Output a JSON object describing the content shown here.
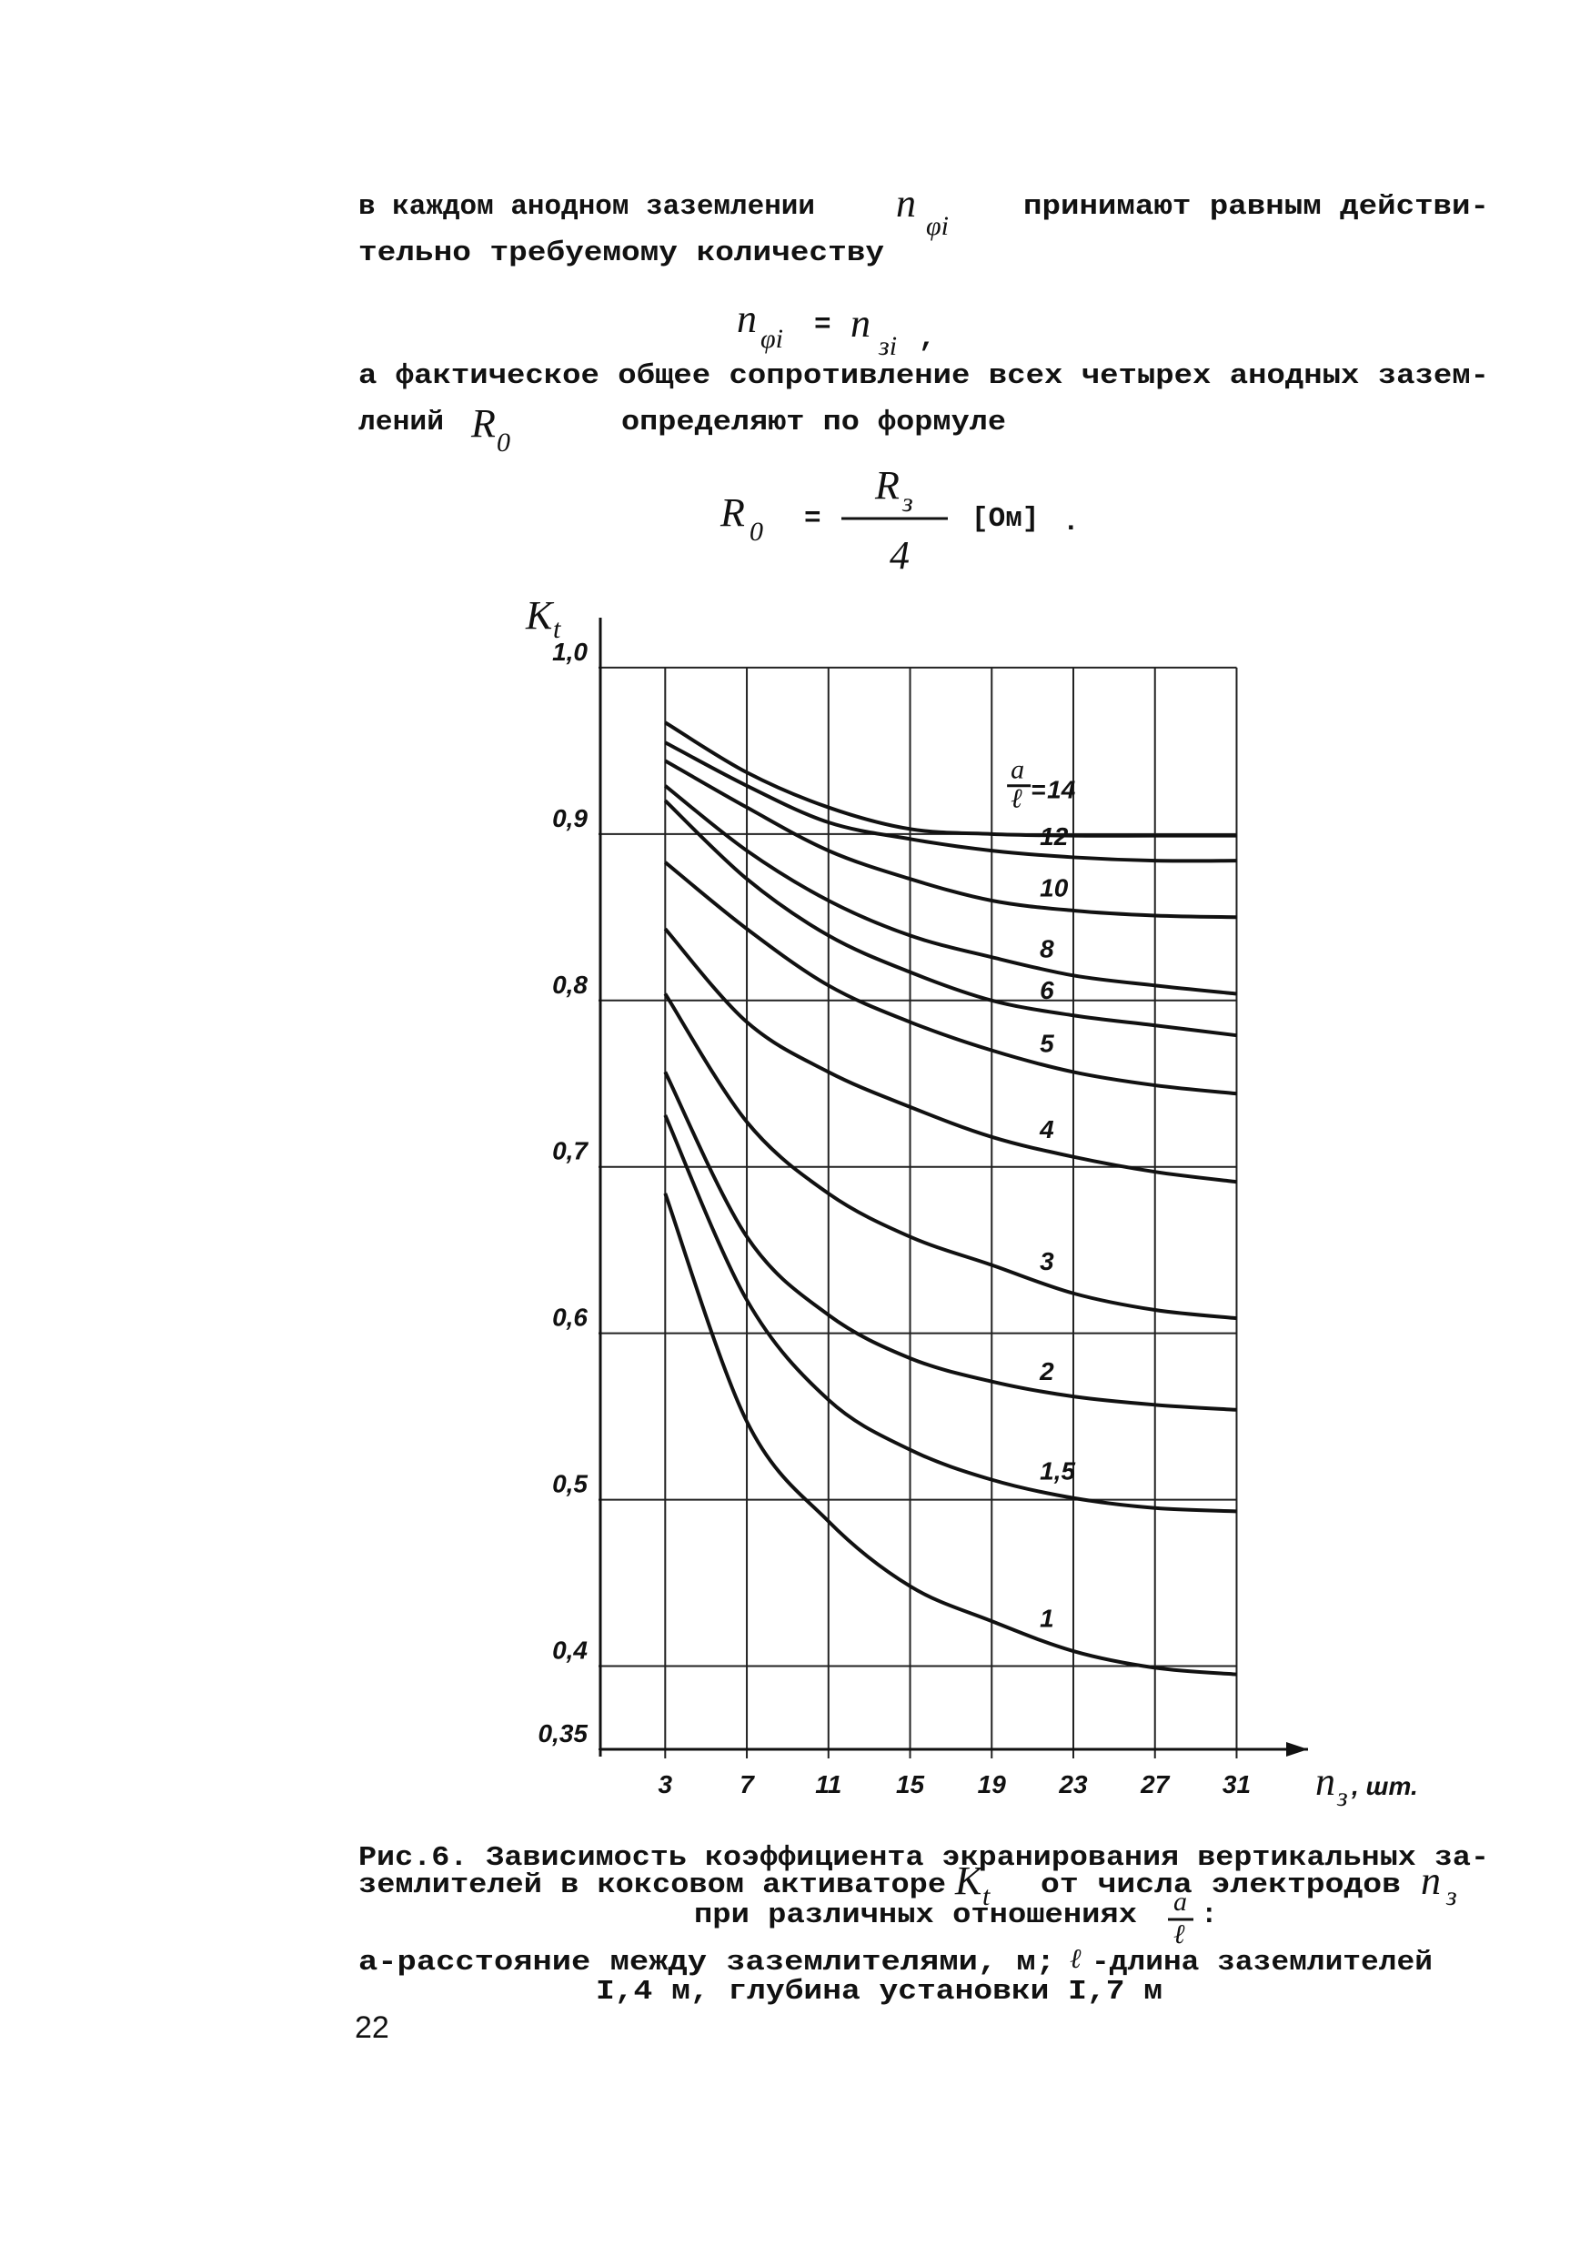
{
  "paragraph_1": {
    "text_1": "в каждом анодном заземлении",
    "symbol": "n",
    "symbol_sub": "φi",
    "text_2": "принимают равным действи-",
    "text_3": "тельно требуемому количеству"
  },
  "formula_1": {
    "left": "n",
    "left_sub": "φi",
    "equals": "=",
    "right": "n",
    "right_sub": "зi",
    "end": ","
  },
  "paragraph_2": {
    "text_1": "а фактическое общее сопротивление всех четырех анодных зазем-",
    "text_2": "лений",
    "symbol": "R",
    "symbol_sub": "0",
    "text_3": "определяют по формуле"
  },
  "formula_2": {
    "left": "R",
    "left_sub": "0",
    "equals": "=",
    "numerator": "R",
    "numerator_sub": "з",
    "denominator": "4",
    "unit": "[Ом]",
    "end": "."
  },
  "chart_data": {
    "type": "line",
    "y_label": "K",
    "y_label_sub": "t",
    "x_label": "n",
    "x_label_sub": "з",
    "x_label_suffix": ", шт.",
    "ratio_label": {
      "numerator": "a",
      "denominator": "ℓ",
      "sign": "="
    },
    "x": [
      3,
      7,
      11,
      15,
      19,
      23,
      27,
      31
    ],
    "xlim": [
      0,
      34.5
    ],
    "xticks": [
      3,
      7,
      11,
      15,
      19,
      23,
      27,
      31
    ],
    "ylim": [
      0.35,
      1.03
    ],
    "yticks": [
      {
        "value": 0.35,
        "label": "0,35"
      },
      {
        "value": 0.4,
        "label": "0,4"
      },
      {
        "value": 0.5,
        "label": "0,5"
      },
      {
        "value": 0.6,
        "label": "0,6"
      },
      {
        "value": 0.7,
        "label": "0,7"
      },
      {
        "value": 0.8,
        "label": "0,8"
      },
      {
        "value": 0.9,
        "label": "0,9"
      },
      {
        "value": 1.0,
        "label": "1,0"
      }
    ],
    "grid": true,
    "series": [
      {
        "name": "14",
        "color": "#111111",
        "values": [
          0.967,
          0.937,
          0.916,
          0.903,
          0.9,
          0.899,
          0.899,
          0.899
        ]
      },
      {
        "name": "12",
        "color": "#111111",
        "values": [
          0.955,
          0.929,
          0.907,
          0.897,
          0.89,
          0.886,
          0.884,
          0.884
        ]
      },
      {
        "name": "10",
        "color": "#111111",
        "values": [
          0.944,
          0.916,
          0.89,
          0.873,
          0.86,
          0.854,
          0.851,
          0.85
        ]
      },
      {
        "name": "8",
        "color": "#111111",
        "values": [
          0.929,
          0.89,
          0.86,
          0.839,
          0.826,
          0.815,
          0.809,
          0.804
        ]
      },
      {
        "name": "6",
        "color": "#111111",
        "values": [
          0.92,
          0.873,
          0.839,
          0.817,
          0.8,
          0.791,
          0.785,
          0.779
        ]
      },
      {
        "name": "5",
        "color": "#111111",
        "values": [
          0.883,
          0.843,
          0.809,
          0.787,
          0.77,
          0.757,
          0.749,
          0.744
        ]
      },
      {
        "name": "4",
        "color": "#111111",
        "values": [
          0.843,
          0.787,
          0.757,
          0.736,
          0.718,
          0.706,
          0.697,
          0.691
        ]
      },
      {
        "name": "3",
        "color": "#111111",
        "values": [
          0.804,
          0.727,
          0.684,
          0.658,
          0.641,
          0.624,
          0.614,
          0.609
        ]
      },
      {
        "name": "2",
        "color": "#111111",
        "values": [
          0.757,
          0.658,
          0.611,
          0.585,
          0.571,
          0.562,
          0.557,
          0.554
        ]
      },
      {
        "name": "1,5",
        "color": "#111111",
        "values": [
          0.731,
          0.62,
          0.56,
          0.53,
          0.512,
          0.501,
          0.495,
          0.493
        ]
      },
      {
        "name": "1",
        "color": "#111111",
        "values": [
          0.684,
          0.547,
          0.487,
          0.448,
          0.427,
          0.409,
          0.399,
          0.395
        ]
      }
    ]
  },
  "caption": {
    "line_1": "Рис.6. Зависимость коэффициента экранирования вертикальных за-",
    "line_2a": "землителей в коксовом активаторе",
    "symbol": "K",
    "symbol_sub": "t",
    "line_2b": "от числа электродов",
    "symbol_2": "n",
    "symbol_2_sub": "з",
    "line_3a": "при различных отношениях",
    "ratio_num": "a",
    "ratio_den": "ℓ",
    "line_3b": ":",
    "line_4a": "а-расстояние между заземлителями, м;",
    "symbol_3": "ℓ",
    "line_4b": "-длина заземлителей",
    "line_5": "I,4 м, глубина установки I,7 м"
  },
  "page_number": "22"
}
